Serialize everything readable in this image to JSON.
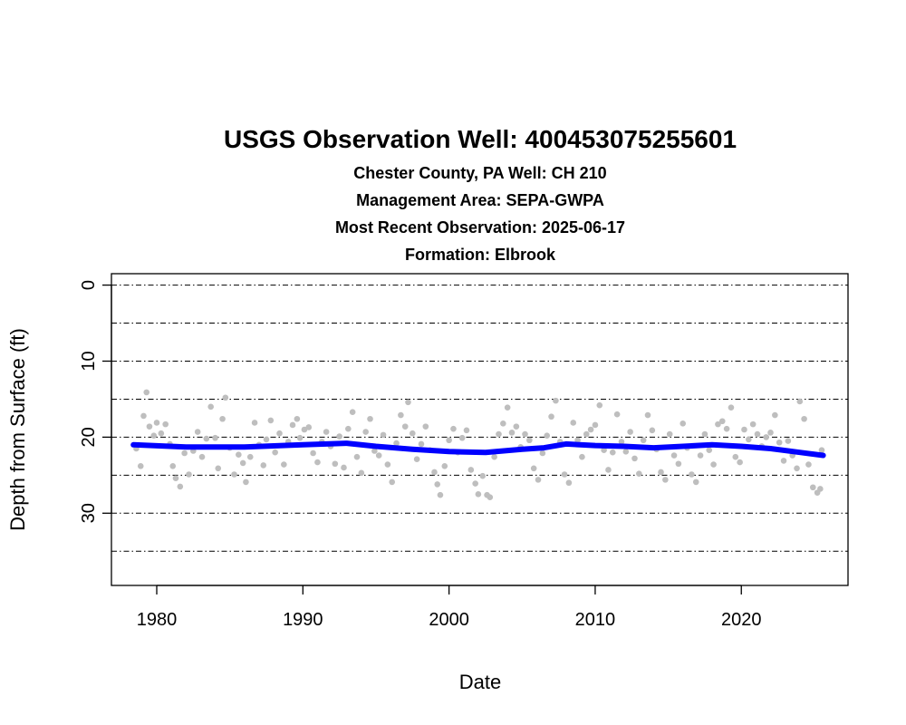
{
  "chart_data": {
    "type": "scatter",
    "title": "USGS Observation Well:  400453075255601",
    "subtitle_lines": [
      "Chester County, PA   Well: CH 210",
      "Management Area: SEPA-GWPA",
      "Most Recent Observation: 2025-06-17",
      "Formation: Elbrook"
    ],
    "xlabel": "Date",
    "ylabel": "Depth from Surface (ft)",
    "xlim": [
      1976.9,
      2027.3
    ],
    "ylim": [
      39.5,
      -1.5
    ],
    "y_reversed": true,
    "x_ticks": [
      1980,
      1990,
      2000,
      2010,
      2020
    ],
    "y_ticks": [
      0,
      10,
      20,
      30
    ],
    "gridlines_y": [
      0,
      5,
      10,
      15,
      20,
      25,
      30,
      35
    ],
    "grid": "horizontal dash-dot lines every 5 ft",
    "colors": {
      "points": "#bebebe",
      "trend": "#0000ff",
      "grid": "#000000"
    },
    "series": [
      {
        "type": "scatter",
        "points": [
          [
            1978.6,
            21.5
          ],
          [
            1978.9,
            23.8
          ],
          [
            1979.1,
            17.2
          ],
          [
            1979.3,
            14.1
          ],
          [
            1979.5,
            18.6
          ],
          [
            1979.8,
            19.8
          ],
          [
            1980.0,
            18.1
          ],
          [
            1980.3,
            19.5
          ],
          [
            1980.6,
            18.3
          ],
          [
            1980.9,
            20.9
          ],
          [
            1981.1,
            23.8
          ],
          [
            1981.3,
            25.4
          ],
          [
            1981.6,
            26.5
          ],
          [
            1981.9,
            22.1
          ],
          [
            1982.2,
            24.9
          ],
          [
            1982.5,
            21.8
          ],
          [
            1982.8,
            19.3
          ],
          [
            1983.1,
            22.6
          ],
          [
            1983.4,
            20.2
          ],
          [
            1983.7,
            16.0
          ],
          [
            1984.0,
            20.1
          ],
          [
            1984.2,
            24.1
          ],
          [
            1984.5,
            17.6
          ],
          [
            1984.7,
            14.8
          ],
          [
            1985.0,
            21.4
          ],
          [
            1985.3,
            24.9
          ],
          [
            1985.6,
            22.3
          ],
          [
            1985.9,
            23.4
          ],
          [
            1986.1,
            25.9
          ],
          [
            1986.4,
            22.6
          ],
          [
            1986.7,
            18.1
          ],
          [
            1987.0,
            21.0
          ],
          [
            1987.3,
            23.7
          ],
          [
            1987.5,
            20.3
          ],
          [
            1987.8,
            17.8
          ],
          [
            1988.1,
            22.0
          ],
          [
            1988.4,
            19.5
          ],
          [
            1988.7,
            23.6
          ],
          [
            1989.0,
            20.6
          ],
          [
            1989.3,
            18.4
          ],
          [
            1989.6,
            17.6
          ],
          [
            1989.8,
            20.1
          ],
          [
            1990.1,
            19.0
          ],
          [
            1990.4,
            18.7
          ],
          [
            1990.7,
            22.1
          ],
          [
            1991.0,
            23.3
          ],
          [
            1991.3,
            20.6
          ],
          [
            1991.6,
            19.3
          ],
          [
            1991.9,
            21.2
          ],
          [
            1992.2,
            23.5
          ],
          [
            1992.5,
            19.9
          ],
          [
            1992.8,
            24.0
          ],
          [
            1993.1,
            18.9
          ],
          [
            1993.4,
            16.7
          ],
          [
            1993.7,
            22.6
          ],
          [
            1994.0,
            24.7
          ],
          [
            1994.3,
            19.3
          ],
          [
            1994.6,
            17.6
          ],
          [
            1994.9,
            21.8
          ],
          [
            1995.2,
            22.4
          ],
          [
            1995.5,
            19.7
          ],
          [
            1995.8,
            23.6
          ],
          [
            1996.1,
            25.9
          ],
          [
            1996.4,
            20.8
          ],
          [
            1996.7,
            17.1
          ],
          [
            1997.0,
            18.6
          ],
          [
            1997.2,
            15.4
          ],
          [
            1997.5,
            19.5
          ],
          [
            1997.8,
            22.9
          ],
          [
            1998.1,
            20.9
          ],
          [
            1998.4,
            18.6
          ],
          [
            1998.7,
            21.7
          ],
          [
            1999.0,
            24.6
          ],
          [
            1999.2,
            26.2
          ],
          [
            1999.4,
            27.6
          ],
          [
            1999.7,
            23.8
          ],
          [
            2000.0,
            20.4
          ],
          [
            2000.3,
            18.9
          ],
          [
            2000.6,
            22.0
          ],
          [
            2000.9,
            20.1
          ],
          [
            2001.2,
            19.1
          ],
          [
            2001.5,
            24.3
          ],
          [
            2001.8,
            26.1
          ],
          [
            2002.0,
            27.5
          ],
          [
            2002.3,
            25.1
          ],
          [
            2002.6,
            27.6
          ],
          [
            2002.8,
            27.9
          ],
          [
            2003.1,
            22.6
          ],
          [
            2003.4,
            19.6
          ],
          [
            2003.7,
            18.2
          ],
          [
            2004.0,
            16.1
          ],
          [
            2004.3,
            19.4
          ],
          [
            2004.6,
            18.6
          ],
          [
            2004.9,
            21.3
          ],
          [
            2005.2,
            19.6
          ],
          [
            2005.5,
            20.4
          ],
          [
            2005.8,
            24.1
          ],
          [
            2006.1,
            25.6
          ],
          [
            2006.4,
            22.1
          ],
          [
            2006.7,
            19.8
          ],
          [
            2007.0,
            17.3
          ],
          [
            2007.3,
            15.2
          ],
          [
            2007.6,
            20.6
          ],
          [
            2007.9,
            24.9
          ],
          [
            2008.2,
            26.0
          ],
          [
            2008.5,
            18.1
          ],
          [
            2008.8,
            20.4
          ],
          [
            2009.1,
            22.6
          ],
          [
            2009.4,
            19.6
          ],
          [
            2009.7,
            19.0
          ],
          [
            2010.0,
            18.4
          ],
          [
            2010.3,
            15.8
          ],
          [
            2010.6,
            21.7
          ],
          [
            2010.9,
            24.3
          ],
          [
            2011.2,
            22.0
          ],
          [
            2011.5,
            17.0
          ],
          [
            2011.8,
            20.6
          ],
          [
            2012.1,
            21.9
          ],
          [
            2012.4,
            19.3
          ],
          [
            2012.7,
            22.8
          ],
          [
            2013.0,
            24.8
          ],
          [
            2013.3,
            20.4
          ],
          [
            2013.6,
            17.1
          ],
          [
            2013.9,
            19.1
          ],
          [
            2014.2,
            21.6
          ],
          [
            2014.5,
            24.6
          ],
          [
            2014.8,
            25.6
          ],
          [
            2015.1,
            19.6
          ],
          [
            2015.4,
            22.4
          ],
          [
            2015.7,
            23.5
          ],
          [
            2016.0,
            18.2
          ],
          [
            2016.3,
            21.4
          ],
          [
            2016.6,
            24.9
          ],
          [
            2016.9,
            25.9
          ],
          [
            2017.2,
            22.4
          ],
          [
            2017.5,
            19.6
          ],
          [
            2017.8,
            21.7
          ],
          [
            2018.1,
            23.6
          ],
          [
            2018.4,
            18.3
          ],
          [
            2018.7,
            17.9
          ],
          [
            2019.0,
            18.9
          ],
          [
            2019.3,
            16.1
          ],
          [
            2019.6,
            22.6
          ],
          [
            2019.9,
            23.3
          ],
          [
            2020.2,
            19.0
          ],
          [
            2020.5,
            20.3
          ],
          [
            2020.8,
            18.3
          ],
          [
            2021.1,
            19.6
          ],
          [
            2021.4,
            21.2
          ],
          [
            2021.7,
            20.0
          ],
          [
            2022.0,
            19.4
          ],
          [
            2022.3,
            17.1
          ],
          [
            2022.6,
            20.7
          ],
          [
            2022.9,
            23.1
          ],
          [
            2023.2,
            20.5
          ],
          [
            2023.5,
            22.4
          ],
          [
            2023.8,
            24.1
          ],
          [
            2024.0,
            15.3
          ],
          [
            2024.3,
            17.6
          ],
          [
            2024.6,
            23.6
          ],
          [
            2024.9,
            26.6
          ],
          [
            2025.2,
            27.3
          ],
          [
            2025.4,
            26.8
          ],
          [
            2025.5,
            21.7
          ]
        ]
      },
      {
        "type": "line",
        "points": [
          [
            1978.4,
            21.0
          ],
          [
            1982.0,
            21.3
          ],
          [
            1986.0,
            21.3
          ],
          [
            1990.0,
            21.0
          ],
          [
            1993.0,
            20.8
          ],
          [
            1995.0,
            21.2
          ],
          [
            1997.5,
            21.6
          ],
          [
            2000.0,
            21.9
          ],
          [
            2002.5,
            22.0
          ],
          [
            2005.0,
            21.6
          ],
          [
            2006.5,
            21.4
          ],
          [
            2008.0,
            20.9
          ],
          [
            2010.0,
            21.1
          ],
          [
            2012.0,
            21.2
          ],
          [
            2014.0,
            21.4
          ],
          [
            2016.0,
            21.2
          ],
          [
            2018.0,
            21.0
          ],
          [
            2020.0,
            21.2
          ],
          [
            2022.0,
            21.5
          ],
          [
            2024.0,
            22.0
          ],
          [
            2025.6,
            22.4
          ]
        ]
      }
    ]
  }
}
